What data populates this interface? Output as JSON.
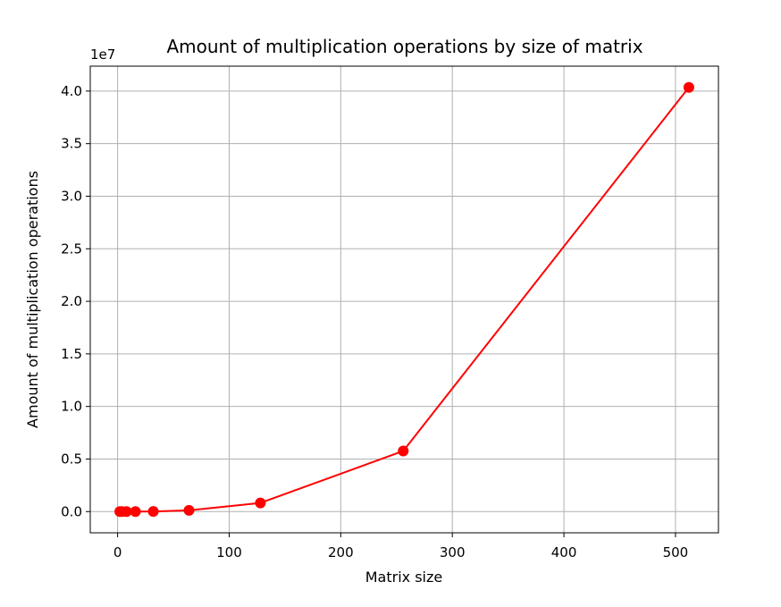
{
  "chart_data": {
    "type": "line",
    "title": "Amount of multiplication operations by size of matrix",
    "xlabel": "Matrix size",
    "ylabel": "Amount of multiplication operations",
    "y_offset_text": "1e7",
    "x": [
      2,
      4,
      8,
      16,
      32,
      64,
      128,
      256,
      512
    ],
    "series": [
      {
        "values": [
          7,
          49,
          343,
          2401,
          16807,
          117649,
          823543,
          5764801,
          40353607
        ],
        "color": "#ff0000",
        "marker": "circle"
      }
    ],
    "xlim": [
      -24.5,
      538.5
    ],
    "ylim": [
      -2017680,
      42371287
    ],
    "xticks": [
      0,
      100,
      200,
      300,
      400,
      500
    ],
    "xtick_labels": [
      "0",
      "100",
      "200",
      "300",
      "400",
      "500"
    ],
    "yticks": [
      0,
      5000000,
      10000000,
      15000000,
      20000000,
      25000000,
      30000000,
      35000000,
      40000000
    ],
    "ytick_labels": [
      "0.0",
      "0.5",
      "1.0",
      "1.5",
      "2.0",
      "2.5",
      "3.0",
      "3.5",
      "4.0"
    ],
    "grid": true,
    "grid_color": "#b0b0b0"
  }
}
